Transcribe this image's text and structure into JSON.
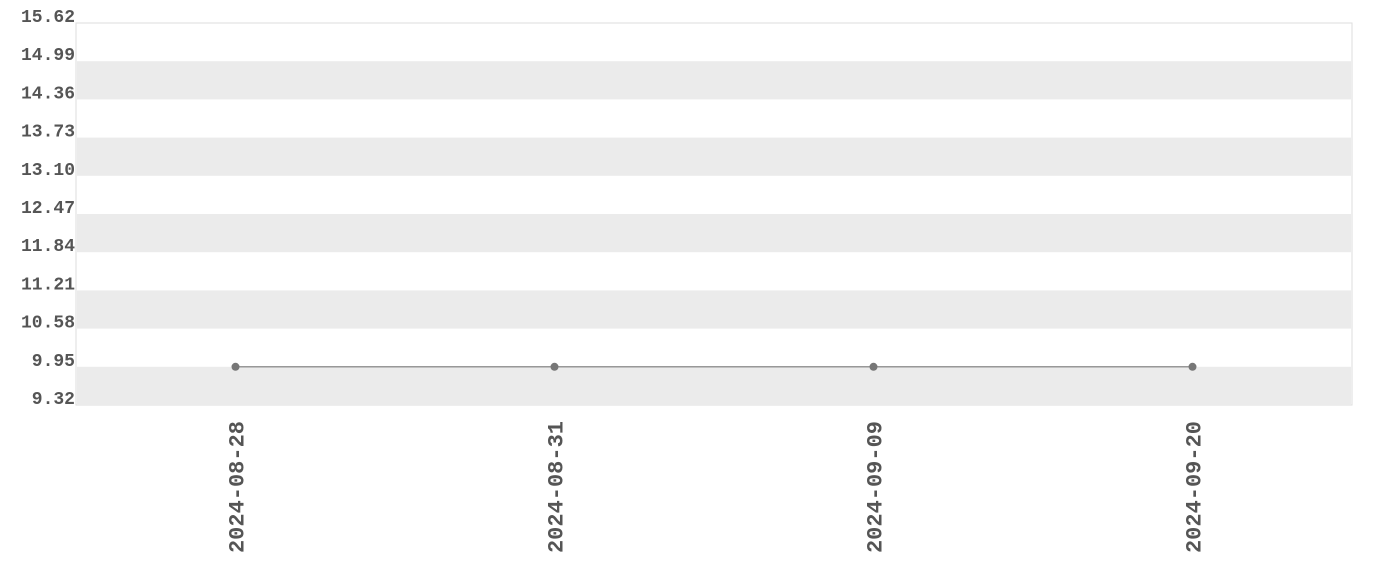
{
  "chart_data": {
    "type": "line",
    "categories": [
      "2024-08-28",
      "2024-08-31",
      "2024-09-09",
      "2024-09-20"
    ],
    "values": [
      9.95,
      9.95,
      9.95,
      9.95
    ],
    "color": "#777777",
    "ylim": [
      9.32,
      15.62
    ],
    "yticks": [
      9.32,
      9.95,
      10.58,
      11.21,
      11.84,
      12.47,
      {
        "value": 13.1,
        "label": "13.10"
      },
      13.73,
      14.36,
      14.99,
      15.62
    ],
    "grid": true
  }
}
